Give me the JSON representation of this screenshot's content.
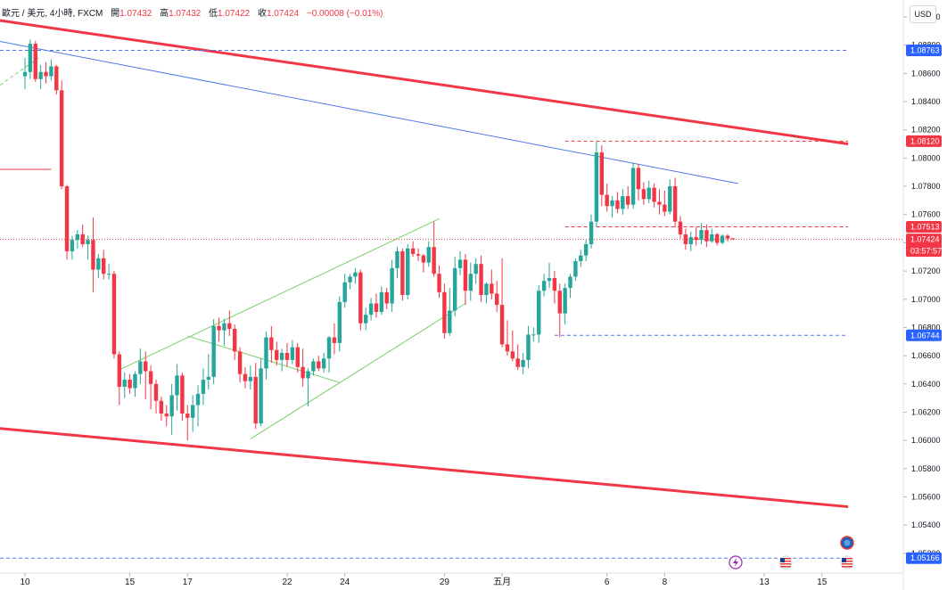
{
  "header": {
    "symbol": "歐元 / 美元, 4小時, FXCM",
    "open_label": "開",
    "open": "1.07432",
    "high_label": "高",
    "high": "1.07432",
    "low_label": "低",
    "low": "1.07422",
    "close_label": "收",
    "close": "1.07424",
    "change": "−0.00008 (−0.01%)"
  },
  "currency_button": "USD",
  "colors": {
    "up": "#26a69a",
    "down": "#f23645",
    "channel": "#f23645",
    "trend": "#4f79ea",
    "pattern": "#7ccd6e",
    "blue_badge": "#2962ff",
    "red_badge": "#f23645",
    "axis_text": "#131722"
  },
  "chart_data": {
    "type": "candlestick",
    "title": "",
    "ylim": [
      1.0506,
      1.0912
    ],
    "y_ticks": [
      "1.09000",
      "1.08800",
      "1.08600",
      "1.08400",
      "1.08200",
      "1.08000",
      "1.07800",
      "1.07600",
      "1.07400",
      "1.07200",
      "1.07000",
      "1.06800",
      "1.06600",
      "1.06400",
      "1.06200",
      "1.06000",
      "1.05800",
      "1.05600",
      "1.05400",
      "1.05200"
    ],
    "x_ticks": [
      {
        "label": "10",
        "bar": 0
      },
      {
        "label": "15",
        "bar": 20
      },
      {
        "label": "17",
        "bar": 31
      },
      {
        "label": "22",
        "bar": 50
      },
      {
        "label": "24",
        "bar": 61
      },
      {
        "label": "29",
        "bar": 80
      },
      {
        "label": "五月",
        "bar": 91
      },
      {
        "label": "6",
        "bar": 111
      },
      {
        "label": "8",
        "bar": 122
      },
      {
        "label": "13",
        "bar": 141
      },
      {
        "label": "15",
        "bar": 152
      }
    ],
    "price_badges": [
      {
        "label": "1.08763",
        "value": 1.08763,
        "color": "blue"
      },
      {
        "label": "1.08120",
        "value": 1.0812,
        "color": "red"
      },
      {
        "label": "1.07513",
        "value": 1.07513,
        "color": "red"
      },
      {
        "label": "1.07424",
        "value": 1.07424,
        "color": "red",
        "sub": "03:57:57"
      },
      {
        "label": "1.06744",
        "value": 1.06744,
        "color": "blue"
      },
      {
        "label": "1.05166",
        "value": 1.05166,
        "color": "blue"
      }
    ],
    "candles": [
      [
        1.0858,
        1.0871,
        1.0849,
        1.0861
      ],
      [
        1.0861,
        1.0884,
        1.0856,
        1.0881
      ],
      [
        1.0881,
        1.0883,
        1.0854,
        1.0856
      ],
      [
        1.0856,
        1.0866,
        1.0849,
        1.0861
      ],
      [
        1.0861,
        1.0868,
        1.0853,
        1.0858
      ],
      [
        1.0858,
        1.087,
        1.0855,
        1.0865
      ],
      [
        1.0865,
        1.0866,
        1.0845,
        1.0848
      ],
      [
        1.0848,
        1.0855,
        1.0778,
        1.078
      ],
      [
        1.078,
        1.0781,
        1.0728,
        1.0734
      ],
      [
        1.0734,
        1.0745,
        1.0728,
        1.0742
      ],
      [
        1.0742,
        1.0749,
        1.0736,
        1.0746
      ],
      [
        1.0746,
        1.0753,
        1.0737,
        1.0739
      ],
      [
        1.0739,
        1.0745,
        1.0728,
        1.0742
      ],
      [
        1.0742,
        1.0758,
        1.0705,
        1.0721
      ],
      [
        1.0721,
        1.0732,
        1.0715,
        1.0729
      ],
      [
        1.0729,
        1.0735,
        1.0714,
        1.0718
      ],
      [
        1.0718,
        1.0725,
        1.0714,
        1.0718
      ],
      [
        1.0718,
        1.072,
        1.0658,
        1.0661
      ],
      [
        1.0661,
        1.0663,
        1.0625,
        1.0638
      ],
      [
        1.0638,
        1.0648,
        1.063,
        1.0643
      ],
      [
        1.0643,
        1.0647,
        1.0633,
        1.0637
      ],
      [
        1.0637,
        1.0649,
        1.0631,
        1.0647
      ],
      [
        1.0647,
        1.0665,
        1.064,
        1.0656
      ],
      [
        1.0656,
        1.0663,
        1.0629,
        1.0649
      ],
      [
        1.0649,
        1.0653,
        1.0622,
        1.064
      ],
      [
        1.064,
        1.0643,
        1.0619,
        1.0628
      ],
      [
        1.0628,
        1.0631,
        1.0614,
        1.0619
      ],
      [
        1.0619,
        1.0625,
        1.061,
        1.0617
      ],
      [
        1.0617,
        1.064,
        1.0604,
        1.0632
      ],
      [
        1.0632,
        1.0654,
        1.0621,
        1.0646
      ],
      [
        1.0646,
        1.0648,
        1.0614,
        1.0619
      ],
      [
        1.0619,
        1.0625,
        1.06,
        1.0616
      ],
      [
        1.0616,
        1.0632,
        1.0606,
        1.0625
      ],
      [
        1.0625,
        1.0639,
        1.061,
        1.0633
      ],
      [
        1.0633,
        1.0651,
        1.0625,
        1.0643
      ],
      [
        1.0643,
        1.0661,
        1.0636,
        1.0645
      ],
      [
        1.0645,
        1.0686,
        1.064,
        1.0681
      ],
      [
        1.0681,
        1.0687,
        1.067,
        1.0678
      ],
      [
        1.0678,
        1.0686,
        1.0667,
        1.0683
      ],
      [
        1.0683,
        1.0692,
        1.0674,
        1.0679
      ],
      [
        1.0679,
        1.0682,
        1.0657,
        1.0663
      ],
      [
        1.0663,
        1.0666,
        1.0641,
        1.0647
      ],
      [
        1.0647,
        1.0652,
        1.0637,
        1.0642
      ],
      [
        1.0642,
        1.0653,
        1.0636,
        1.0645
      ],
      [
        1.0645,
        1.0655,
        1.0608,
        1.0612
      ],
      [
        1.0612,
        1.0658,
        1.061,
        1.0651
      ],
      [
        1.0651,
        1.0677,
        1.0643,
        1.0673
      ],
      [
        1.0673,
        1.0681,
        1.0655,
        1.0664
      ],
      [
        1.0664,
        1.067,
        1.0653,
        1.0657
      ],
      [
        1.0657,
        1.0665,
        1.0649,
        1.0662
      ],
      [
        1.0662,
        1.0669,
        1.0652,
        1.0657
      ],
      [
        1.0657,
        1.0671,
        1.0654,
        1.0666
      ],
      [
        1.0666,
        1.0669,
        1.0648,
        1.0652
      ],
      [
        1.0652,
        1.0665,
        1.0638,
        1.0644
      ],
      [
        1.0644,
        1.0651,
        1.0624,
        1.0649
      ],
      [
        1.0649,
        1.0658,
        1.0646,
        1.0656
      ],
      [
        1.0656,
        1.066,
        1.0649,
        1.0651
      ],
      [
        1.0651,
        1.0662,
        1.0648,
        1.0658
      ],
      [
        1.0658,
        1.0674,
        1.0648,
        1.0673
      ],
      [
        1.0673,
        1.0683,
        1.0661,
        1.0669
      ],
      [
        1.0669,
        1.0702,
        1.0663,
        1.0698
      ],
      [
        1.0698,
        1.0718,
        1.0694,
        1.0712
      ],
      [
        1.0712,
        1.0718,
        1.0707,
        1.0716
      ],
      [
        1.0716,
        1.0722,
        1.0711,
        1.0719
      ],
      [
        1.0719,
        1.0721,
        1.0678,
        1.0683
      ],
      [
        1.0683,
        1.0694,
        1.0678,
        1.0689
      ],
      [
        1.0689,
        1.0701,
        1.0685,
        1.0697
      ],
      [
        1.0697,
        1.0704,
        1.0687,
        1.0691
      ],
      [
        1.0691,
        1.0709,
        1.0689,
        1.0705
      ],
      [
        1.0705,
        1.0708,
        1.0693,
        1.0697
      ],
      [
        1.0697,
        1.0728,
        1.0691,
        1.0722
      ],
      [
        1.0722,
        1.0737,
        1.0715,
        1.0734
      ],
      [
        1.0734,
        1.0736,
        1.0699,
        1.0703
      ],
      [
        1.0703,
        1.0739,
        1.07,
        1.0736
      ],
      [
        1.0736,
        1.0741,
        1.073,
        1.0732
      ],
      [
        1.0732,
        1.0736,
        1.0727,
        1.0731
      ],
      [
        1.0731,
        1.0732,
        1.0719,
        1.0726
      ],
      [
        1.0726,
        1.0741,
        1.0723,
        1.0737
      ],
      [
        1.0737,
        1.0755,
        1.0716,
        1.0718
      ],
      [
        1.0718,
        1.0724,
        1.0701,
        1.0705
      ],
      [
        1.0705,
        1.0711,
        1.0672,
        1.0676
      ],
      [
        1.0676,
        1.0708,
        1.0674,
        1.0692
      ],
      [
        1.0692,
        1.073,
        1.0688,
        1.0722
      ],
      [
        1.0722,
        1.0734,
        1.0717,
        1.0728
      ],
      [
        1.0728,
        1.0732,
        1.0696,
        1.0706
      ],
      [
        1.0706,
        1.0726,
        1.0699,
        1.0718
      ],
      [
        1.0718,
        1.0729,
        1.0711,
        1.0725
      ],
      [
        1.0725,
        1.0731,
        1.0698,
        1.0703
      ],
      [
        1.0703,
        1.0712,
        1.0697,
        1.0711
      ],
      [
        1.0711,
        1.0721,
        1.07,
        1.0704
      ],
      [
        1.0704,
        1.0713,
        1.0691,
        1.0696
      ],
      [
        1.0696,
        1.0729,
        1.0666,
        1.0668
      ],
      [
        1.0668,
        1.0685,
        1.066,
        1.0663
      ],
      [
        1.0663,
        1.0678,
        1.0656,
        1.0658
      ],
      [
        1.0658,
        1.0668,
        1.065,
        1.0652
      ],
      [
        1.0652,
        1.0662,
        1.0647,
        1.0657
      ],
      [
        1.0657,
        1.0681,
        1.0651,
        1.0675
      ],
      [
        1.0675,
        1.068,
        1.067,
        1.0675
      ],
      [
        1.0675,
        1.071,
        1.0669,
        1.0706
      ],
      [
        1.0706,
        1.0718,
        1.0702,
        1.0713
      ],
      [
        1.0713,
        1.0726,
        1.0708,
        1.0715
      ],
      [
        1.0715,
        1.072,
        1.0697,
        1.0706
      ],
      [
        1.0706,
        1.0711,
        1.0673,
        1.069
      ],
      [
        1.069,
        1.0711,
        1.0682,
        1.0708
      ],
      [
        1.0708,
        1.0718,
        1.0701,
        1.0716
      ],
      [
        1.0716,
        1.0729,
        1.0713,
        1.0727
      ],
      [
        1.0727,
        1.0735,
        1.0723,
        1.0731
      ],
      [
        1.0731,
        1.0742,
        1.0727,
        1.0739
      ],
      [
        1.0739,
        1.076,
        1.0736,
        1.0755
      ],
      [
        1.0755,
        1.0812,
        1.0751,
        1.0804
      ],
      [
        1.0804,
        1.0809,
        1.0766,
        1.0774
      ],
      [
        1.0774,
        1.0782,
        1.0762,
        1.0766
      ],
      [
        1.0766,
        1.0773,
        1.0758,
        1.077
      ],
      [
        1.077,
        1.0776,
        1.0761,
        1.0764
      ],
      [
        1.0764,
        1.0778,
        1.076,
        1.0773
      ],
      [
        1.0773,
        1.078,
        1.0764,
        1.0767
      ],
      [
        1.0767,
        1.0797,
        1.0764,
        1.0793
      ],
      [
        1.0793,
        1.0796,
        1.077,
        1.0778
      ],
      [
        1.0778,
        1.0783,
        1.0767,
        1.0771
      ],
      [
        1.0771,
        1.0784,
        1.0768,
        1.0779
      ],
      [
        1.0779,
        1.0782,
        1.0765,
        1.0769
      ],
      [
        1.0769,
        1.0778,
        1.076,
        1.0767
      ],
      [
        1.0767,
        1.0777,
        1.0759,
        1.0762
      ],
      [
        1.0762,
        1.0785,
        1.076,
        1.078
      ],
      [
        1.078,
        1.0786,
        1.0751,
        1.0755
      ],
      [
        1.0755,
        1.0759,
        1.0743,
        1.0746
      ],
      [
        1.0746,
        1.075,
        1.0735,
        1.0739
      ],
      [
        1.0739,
        1.0748,
        1.0734,
        1.0744
      ],
      [
        1.0744,
        1.0751,
        1.0738,
        1.0742
      ],
      [
        1.0742,
        1.0754,
        1.0739,
        1.0749
      ],
      [
        1.0749,
        1.0753,
        1.0737,
        1.0741
      ],
      [
        1.0741,
        1.075,
        1.074,
        1.0746
      ],
      [
        1.0746,
        1.0747,
        1.0738,
        1.074
      ],
      [
        1.074,
        1.0746,
        1.0739,
        1.0745
      ],
      [
        1.0745,
        1.0746,
        1.0741,
        1.0743
      ],
      [
        1.07432,
        1.07432,
        1.07422,
        1.07424
      ]
    ],
    "drawings": {
      "channel_upper": [
        [
          -15,
          1.0903
        ],
        [
          157,
          1.081
        ]
      ],
      "channel_lower": [
        [
          -15,
          1.0612
        ],
        [
          157,
          1.0553
        ]
      ],
      "trendline": [
        [
          -15,
          1.089
        ],
        [
          136,
          1.0782
        ]
      ],
      "wedge_upper": [
        [
          18,
          1.065
        ],
        [
          79,
          1.0757
        ]
      ],
      "wedge_lower": [
        [
          43,
          1.0601
        ],
        [
          84,
          1.0697
        ]
      ],
      "converge_line": [
        [
          31,
          1.0674
        ],
        [
          60,
          1.0641
        ]
      ],
      "dashed_green": [
        [
          -15,
          1.0825
        ],
        [
          3,
          1.0872
        ]
      ],
      "hline_red": [
        [
          -15,
          1.0792
        ],
        [
          5,
          1.0792
        ]
      ],
      "hline_dashed_red": [
        [
          103,
          1.0812
        ],
        [
          157,
          1.0812
        ]
      ],
      "hline_dashed_red_2": [
        [
          103,
          1.07513
        ],
        [
          157,
          1.07513
        ]
      ],
      "hline_dashed_blue_low": [
        [
          101,
          1.06744
        ],
        [
          157,
          1.06744
        ]
      ],
      "hline_dashed_blue_top": [
        [
          -15,
          1.08763
        ],
        [
          157,
          1.08763
        ]
      ],
      "hline_dashed_blue_bottom": [
        [
          -15,
          1.05166
        ],
        [
          157,
          1.05166
        ]
      ]
    },
    "event_icons": [
      "lightning",
      "us-flag",
      "us-flag",
      "globe"
    ]
  }
}
